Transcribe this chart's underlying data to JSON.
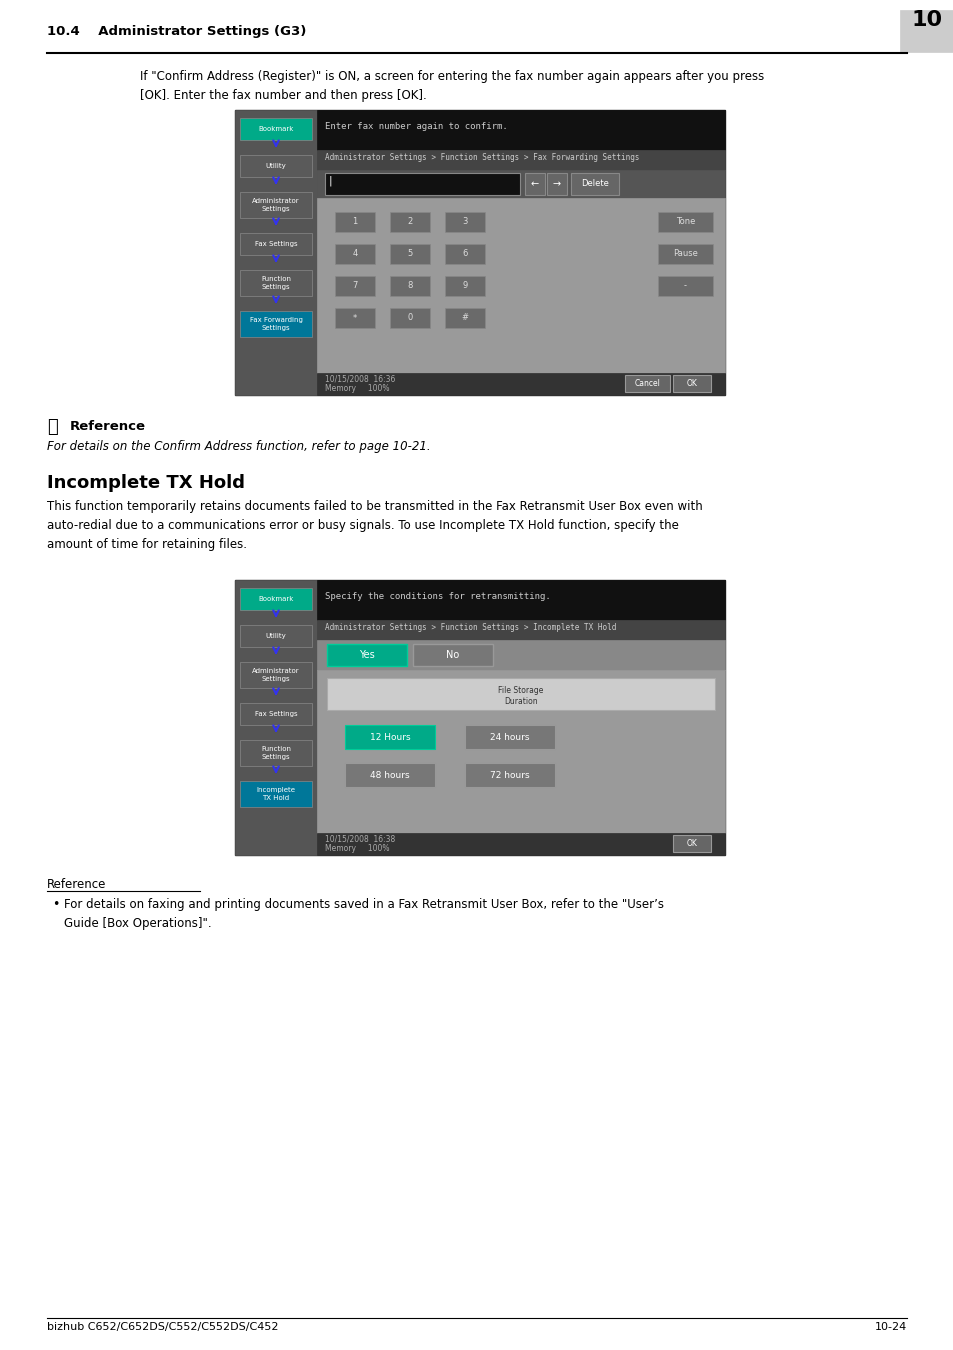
{
  "page_bg": "#ffffff",
  "header_text": "10.4    Administrator Settings (G3)",
  "header_num": "10",
  "footer_left": "bizhub C652/C652DS/C552/C552DS/C452",
  "footer_right": "10-24",
  "body_text1": "If \"Confirm Address (Register)\" is ON, a screen for entering the fax number again appears after you press\n[OK]. Enter the fax number and then press [OK].",
  "reference_text": "For details on the Confirm Address function, refer to page 10-21.",
  "section_title": "Incomplete TX Hold",
  "section_body": "This function temporarily retains documents failed to be transmitted in the Fax Retransmit User Box even with\nauto-redial due to a communications error or busy signals. To use Incomplete TX Hold function, specify the\namount of time for retaining files.",
  "ref2_bullet": "For details on faxing and printing documents saved in a Fax Retransmit User Box, refer to the \"User’s\nGuide [Box Operations]\".",
  "green_btn": "#00aa88",
  "screen1_title": "Enter fax number again to confirm.",
  "screen1_breadcrumb": "Administrator Settings > Function Settings > Fax Forwarding Settings",
  "screen2_title": "Specify the conditions for retransmitting.",
  "screen2_breadcrumb": "Administrator Settings > Function Settings > Incomplete TX Hold"
}
